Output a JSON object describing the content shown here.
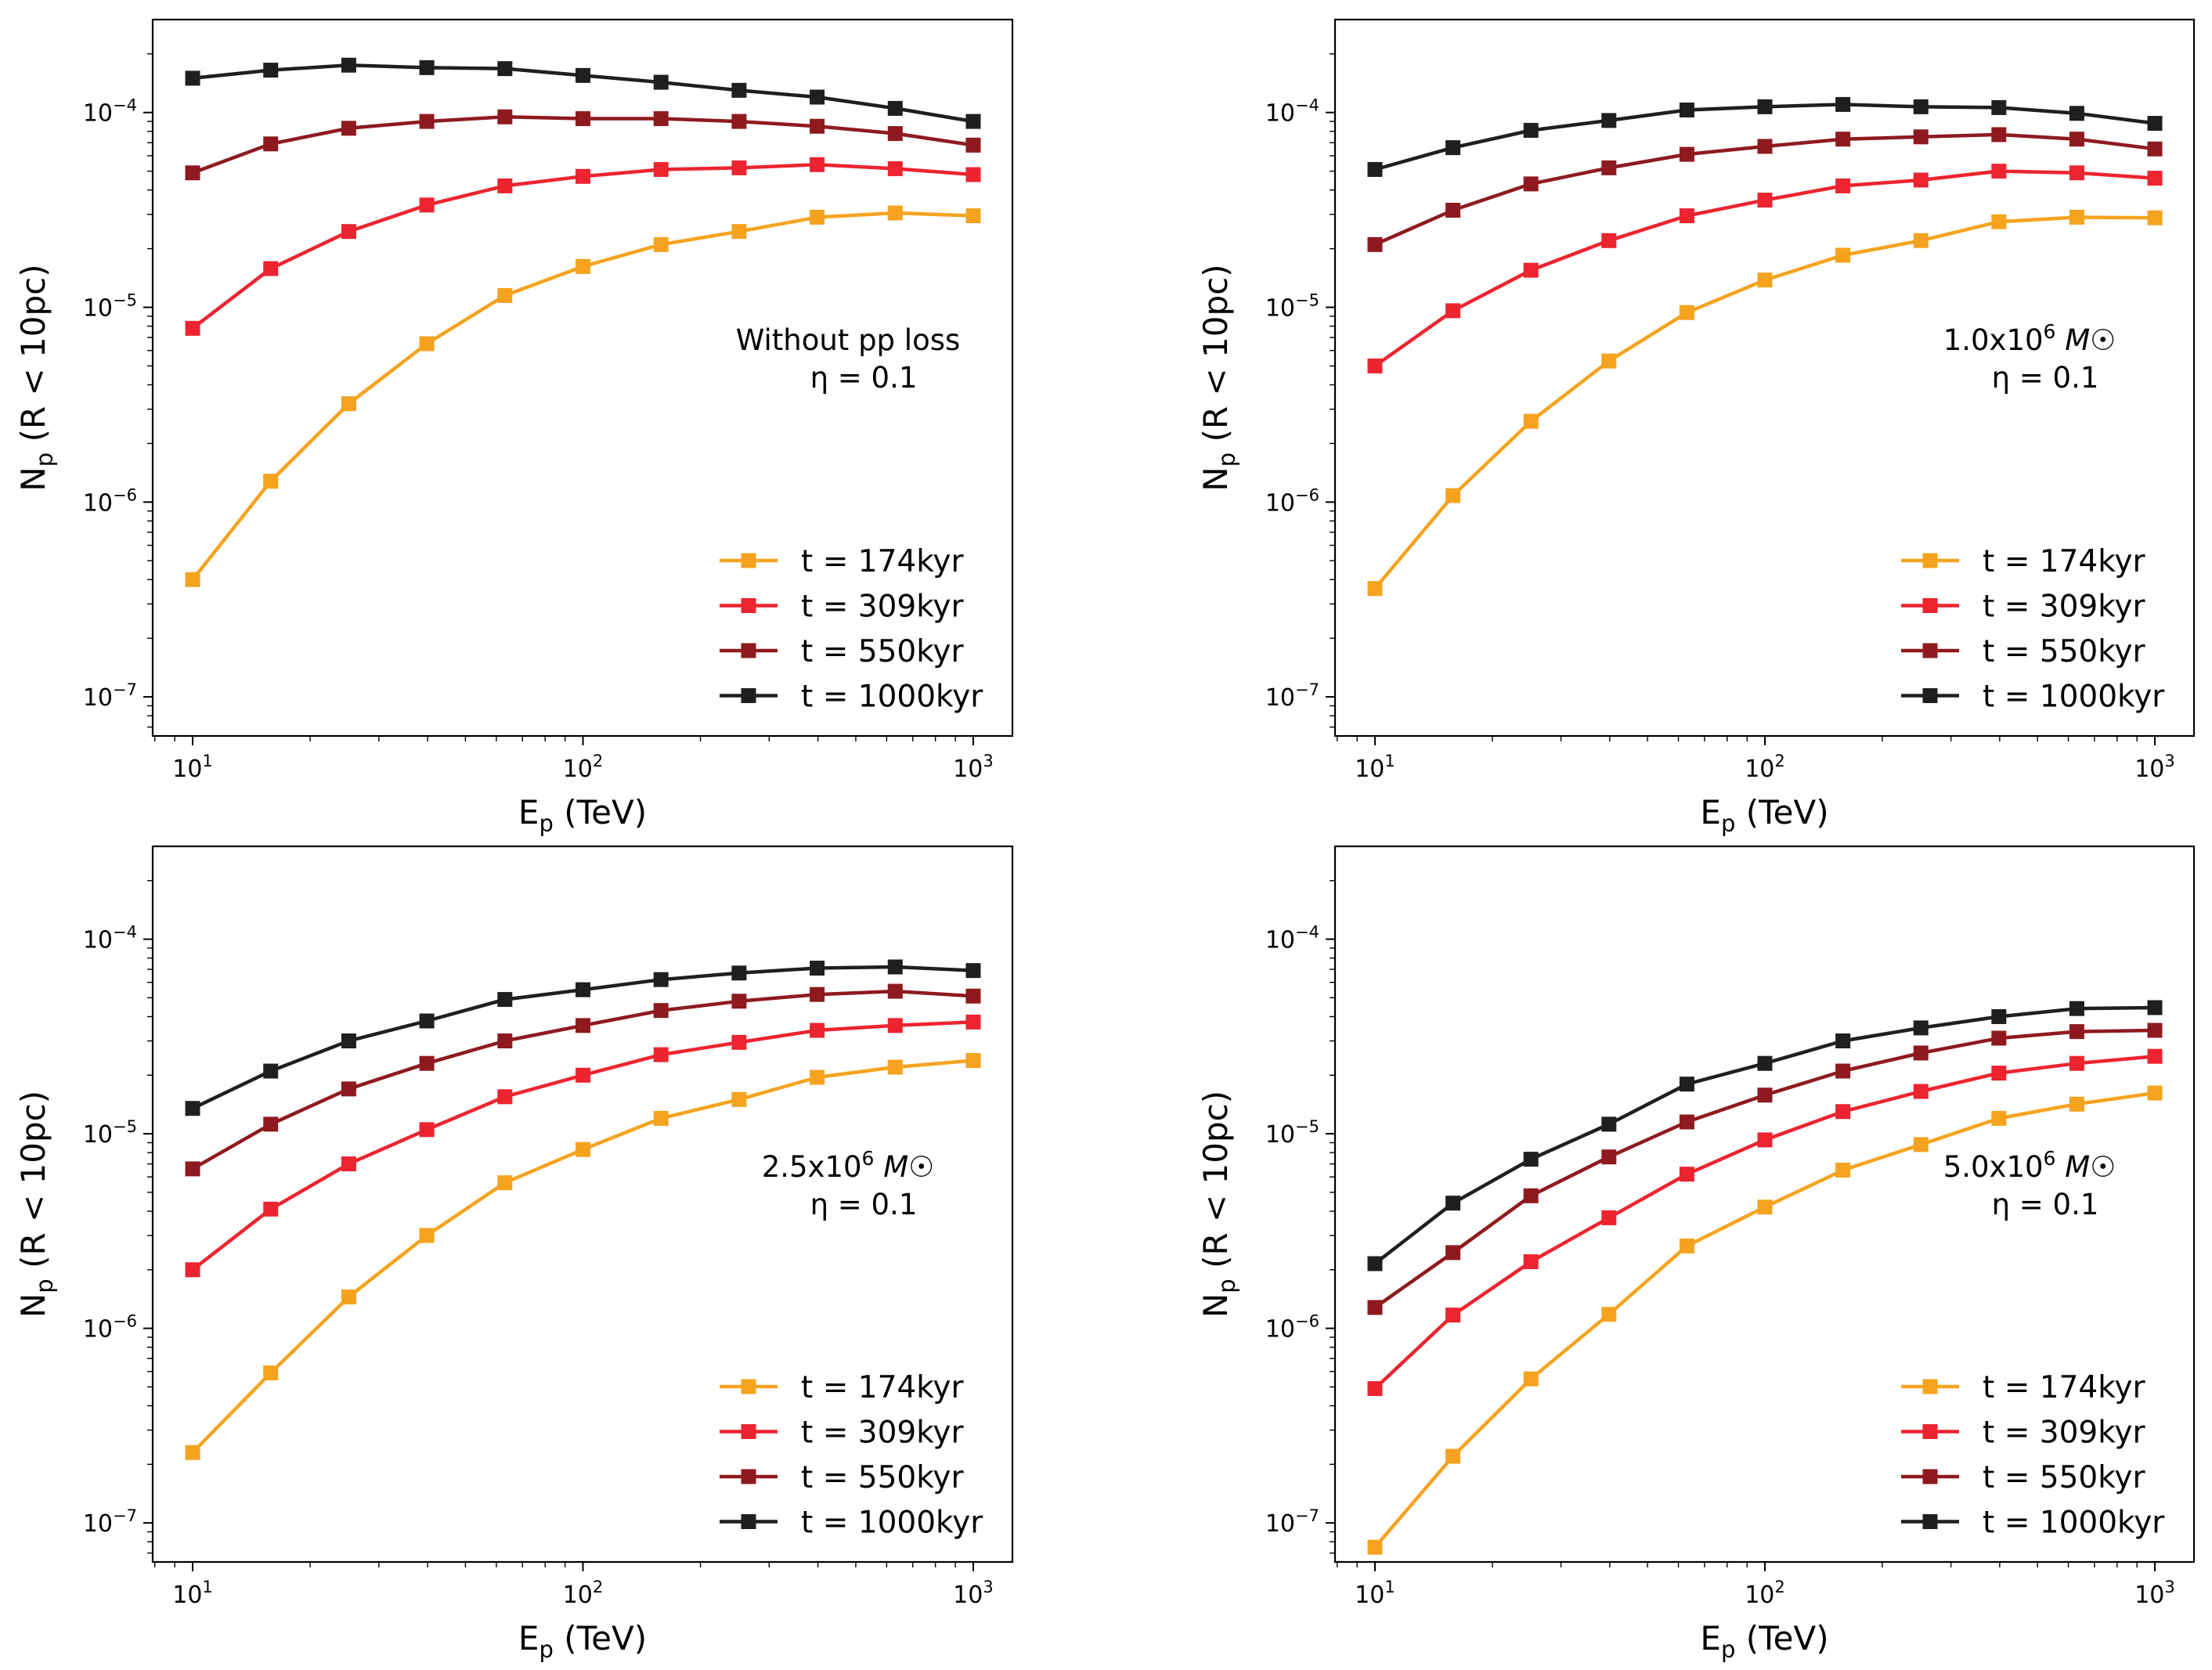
{
  "colors": {
    "t174": "#f5a31f",
    "t309": "#ec2430",
    "t550": "#8e1a1f",
    "t1000": "#1f1f1f"
  },
  "chart_data": [
    {
      "type": "line",
      "position": "top-left",
      "x": [
        10,
        15.85,
        25.12,
        39.81,
        63.1,
        100,
        158.5,
        251.2,
        398.1,
        631,
        1000
      ],
      "xscale": "log",
      "yscale": "log",
      "xlim": [
        7.9,
        1260
      ],
      "ylim": [
        6.3e-08,
        0.0003
      ],
      "xlabel": "E",
      "xlabel_sub": "p",
      "xlabel_rest": " (TeV)",
      "ylabel": "N",
      "ylabel_sub": "p",
      "ylabel_rest": " (R < 10pc)",
      "annotation": {
        "line1": "Without pp loss",
        "line2": "η = 0.1"
      },
      "legend_position": "lower-right",
      "series": [
        {
          "name": "t = 174kyr",
          "color_key": "t174",
          "values": [
            4e-07,
            1.28e-06,
            3.2e-06,
            6.5e-06,
            1.15e-05,
            1.62e-05,
            2.1e-05,
            2.45e-05,
            2.9e-05,
            3.05e-05,
            2.95e-05
          ]
        },
        {
          "name": "t = 309kyr",
          "color_key": "t309",
          "values": [
            7.8e-06,
            1.58e-05,
            2.45e-05,
            3.35e-05,
            4.2e-05,
            4.7e-05,
            5.1e-05,
            5.2e-05,
            5.4e-05,
            5.15e-05,
            4.8e-05
          ]
        },
        {
          "name": "t = 550kyr",
          "color_key": "t550",
          "values": [
            4.9e-05,
            6.9e-05,
            8.3e-05,
            9e-05,
            9.5e-05,
            9.3e-05,
            9.3e-05,
            9e-05,
            8.5e-05,
            7.8e-05,
            6.8e-05
          ]
        },
        {
          "name": "t = 1000kyr",
          "color_key": "t1000",
          "values": [
            0.00015,
            0.000165,
            0.000175,
            0.00017,
            0.000168,
            0.000155,
            0.000143,
            0.00013,
            0.00012,
            0.000105,
            9e-05
          ]
        }
      ]
    },
    {
      "type": "line",
      "position": "top-right",
      "x": [
        10,
        15.85,
        25.12,
        39.81,
        63.1,
        100,
        158.5,
        251.2,
        398.1,
        631,
        1000
      ],
      "xscale": "log",
      "yscale": "log",
      "xlim": [
        7.9,
        1260
      ],
      "ylim": [
        6.3e-08,
        0.0003
      ],
      "xlabel": "E",
      "xlabel_sub": "p",
      "xlabel_rest": " (TeV)",
      "ylabel": "N",
      "ylabel_sub": "p",
      "ylabel_rest": " (R < 10pc)",
      "annotation": {
        "line1": "1.0x10",
        "line1_sup": "6",
        "line1_rest": " M☉",
        "line2": "η = 0.1"
      },
      "legend_position": "lower-right",
      "series": [
        {
          "name": "t = 174kyr",
          "color_key": "t174",
          "values": [
            3.6e-07,
            1.08e-06,
            2.6e-06,
            5.3e-06,
            9.4e-06,
            1.38e-05,
            1.85e-05,
            2.2e-05,
            2.75e-05,
            2.9e-05,
            2.88e-05
          ]
        },
        {
          "name": "t = 309kyr",
          "color_key": "t309",
          "values": [
            5e-06,
            9.6e-06,
            1.55e-05,
            2.2e-05,
            2.95e-05,
            3.55e-05,
            4.2e-05,
            4.5e-05,
            5e-05,
            4.9e-05,
            4.6e-05
          ]
        },
        {
          "name": "t = 550kyr",
          "color_key": "t550",
          "values": [
            2.1e-05,
            3.15e-05,
            4.3e-05,
            5.2e-05,
            6.1e-05,
            6.7e-05,
            7.3e-05,
            7.5e-05,
            7.7e-05,
            7.3e-05,
            6.5e-05
          ]
        },
        {
          "name": "t = 1000kyr",
          "color_key": "t1000",
          "values": [
            5.1e-05,
            6.6e-05,
            8.1e-05,
            9.1e-05,
            0.000103,
            0.000107,
            0.00011,
            0.000107,
            0.000106,
            9.9e-05,
            8.8e-05
          ]
        }
      ]
    },
    {
      "type": "line",
      "position": "bottom-left",
      "x": [
        10,
        15.85,
        25.12,
        39.81,
        63.1,
        100,
        158.5,
        251.2,
        398.1,
        631,
        1000
      ],
      "xscale": "log",
      "yscale": "log",
      "xlim": [
        7.9,
        1260
      ],
      "ylim": [
        6.3e-08,
        0.0003
      ],
      "xlabel": "E",
      "xlabel_sub": "p",
      "xlabel_rest": " (TeV)",
      "ylabel": "N",
      "ylabel_sub": "p",
      "ylabel_rest": " (R < 10pc)",
      "annotation": {
        "line1": "2.5x10",
        "line1_sup": "6",
        "line1_rest": " M☉",
        "line2": "η = 0.1"
      },
      "legend_position": "lower-right",
      "series": [
        {
          "name": "t = 174kyr",
          "color_key": "t174",
          "values": [
            2.3e-07,
            5.9e-07,
            1.45e-06,
            3e-06,
            5.6e-06,
            8.3e-06,
            1.2e-05,
            1.5e-05,
            1.95e-05,
            2.2e-05,
            2.38e-05
          ]
        },
        {
          "name": "t = 309kyr",
          "color_key": "t309",
          "values": [
            2e-06,
            4.1e-06,
            7e-06,
            1.05e-05,
            1.55e-05,
            2e-05,
            2.55e-05,
            2.95e-05,
            3.4e-05,
            3.6e-05,
            3.75e-05
          ]
        },
        {
          "name": "t = 550kyr",
          "color_key": "t550",
          "values": [
            6.6e-06,
            1.12e-05,
            1.7e-05,
            2.3e-05,
            3e-05,
            3.6e-05,
            4.3e-05,
            4.8e-05,
            5.2e-05,
            5.4e-05,
            5.1e-05
          ]
        },
        {
          "name": "t = 1000kyr",
          "color_key": "t1000",
          "values": [
            1.35e-05,
            2.1e-05,
            3e-05,
            3.8e-05,
            4.9e-05,
            5.5e-05,
            6.2e-05,
            6.7e-05,
            7.1e-05,
            7.2e-05,
            6.9e-05
          ]
        }
      ]
    },
    {
      "type": "line",
      "position": "bottom-right",
      "x": [
        10,
        15.85,
        25.12,
        39.81,
        63.1,
        100,
        158.5,
        251.2,
        398.1,
        631,
        1000
      ],
      "xscale": "log",
      "yscale": "log",
      "xlim": [
        7.9,
        1260
      ],
      "ylim": [
        6.3e-08,
        0.0003
      ],
      "xlabel": "E",
      "xlabel_sub": "p",
      "xlabel_rest": " (TeV)",
      "ylabel": "N",
      "ylabel_sub": "p",
      "ylabel_rest": " (R < 10pc)",
      "annotation": {
        "line1": "5.0x10",
        "line1_sup": "6",
        "line1_rest": " M☉",
        "line2": "η = 0.1"
      },
      "legend_position": "lower-right",
      "series": [
        {
          "name": "t = 174kyr",
          "color_key": "t174",
          "values": [
            7.5e-08,
            2.2e-07,
            5.5e-07,
            1.18e-06,
            2.65e-06,
            4.2e-06,
            6.5e-06,
            8.8e-06,
            1.2e-05,
            1.42e-05,
            1.62e-05
          ]
        },
        {
          "name": "t = 309kyr",
          "color_key": "t309",
          "values": [
            4.9e-07,
            1.17e-06,
            2.2e-06,
            3.7e-06,
            6.2e-06,
            9.3e-06,
            1.3e-05,
            1.65e-05,
            2.05e-05,
            2.3e-05,
            2.5e-05
          ]
        },
        {
          "name": "t = 550kyr",
          "color_key": "t550",
          "values": [
            1.28e-06,
            2.45e-06,
            4.8e-06,
            7.6e-06,
            1.15e-05,
            1.58e-05,
            2.1e-05,
            2.6e-05,
            3.1e-05,
            3.35e-05,
            3.4e-05
          ]
        },
        {
          "name": "t = 1000kyr",
          "color_key": "t1000",
          "values": [
            2.15e-06,
            4.4e-06,
            7.4e-06,
            1.12e-05,
            1.8e-05,
            2.3e-05,
            3e-05,
            3.5e-05,
            4e-05,
            4.4e-05,
            4.45e-05
          ]
        }
      ]
    }
  ]
}
